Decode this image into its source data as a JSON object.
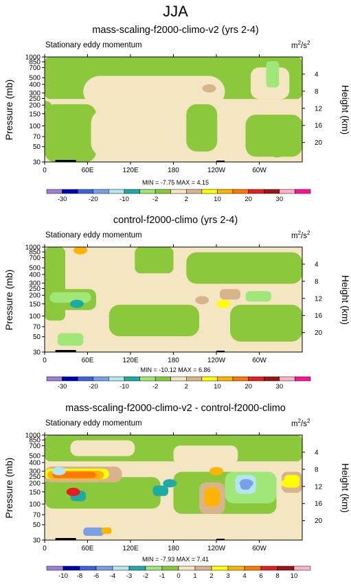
{
  "figure": {
    "season": "JJA"
  },
  "colors": {
    "abs_levels": [
      "#9e7fd6",
      "#0000b4",
      "#3c64dc",
      "#78a0e6",
      "#b4e6f0",
      "#1eaaa5",
      "#a0e678",
      "#8cc83c",
      "#f5e6c3",
      "#d7b48c",
      "#ffff00",
      "#ffb400",
      "#ff7800",
      "#e61e1e",
      "#a01414",
      "#ffb4c8",
      "#ff1493"
    ],
    "diff_levels": [
      "#9e7fd6",
      "#0000b4",
      "#3c64dc",
      "#78a0e6",
      "#b4e6f0",
      "#1eaaa5",
      "#a0e678",
      "#8cc83c",
      "#f5e6c3",
      "#d7b48c",
      "#ffff00",
      "#ffb400",
      "#ff7800",
      "#e61e1e",
      "#a01414",
      "#ffb4c8",
      "#ff1493"
    ]
  },
  "panels": [
    {
      "title": "mass-scaling-f2000-climo-v2 (yrs 2-4)",
      "left_label": "Stationary eddy momentum",
      "units_base": "m",
      "units_sup1": "2",
      "units_mid": "/s",
      "units_sup2": "2",
      "ylabel": "Pressure (mb)",
      "ylabel_right": "Height (km)",
      "minmax": "MIN = -7.75  MAX =  4.15"
    },
    {
      "title": "control-f2000-climo (yrs 2-4)",
      "left_label": "Stationary eddy momentum",
      "units_base": "m",
      "units_sup1": "2",
      "units_mid": "/s",
      "units_sup2": "2",
      "ylabel": "Pressure (mb)",
      "ylabel_right": "Height (km)",
      "minmax": "MIN = -10.12  MAX =  6.86"
    },
    {
      "title": "mass-scaling-f2000-climo-v2 - control-f2000-climo",
      "left_label": "Stationary eddy momentum",
      "units_base": "m",
      "units_sup1": "2",
      "units_mid": "/s",
      "units_sup2": "2",
      "ylabel": "Pressure (mb)",
      "ylabel_right": "Height (km)",
      "minmax": "MIN = -7.93  MAX =  7.41"
    }
  ],
  "chart_data": [
    {
      "type": "heatmap",
      "title": "mass-scaling-f2000-climo-v2 (yrs 2-4)",
      "subtitle": "Stationary eddy momentum",
      "units": "m2/s2",
      "xlabel": "",
      "ylabel": "Pressure (mb)",
      "ylabel_right": "Height (km)",
      "x_ticks": [
        "0",
        "60E",
        "120E",
        "180",
        "120W",
        "60W"
      ],
      "x_tick_values": [
        0,
        60,
        120,
        180,
        240,
        300
      ],
      "xlim": [
        0,
        360
      ],
      "y_ticks": [
        1000,
        850,
        700,
        500,
        400,
        300,
        250,
        200,
        150,
        100,
        70,
        50,
        30
      ],
      "ylim": [
        1000,
        30
      ],
      "y_scale": "log",
      "y_ticks_right": [
        4,
        8,
        12,
        16,
        20
      ],
      "contour_levels": [
        -30,
        -20,
        -10,
        -2,
        2,
        10,
        20,
        30
      ],
      "colorbar_labels": [
        "-30",
        "-20",
        "-10",
        "-2",
        "2",
        "10",
        "20",
        "30"
      ],
      "min": -7.75,
      "max": 4.15,
      "features": [
        {
          "lon": 0,
          "lat_p": 200,
          "class": 7
        },
        {
          "lon": 40,
          "lat_p": 500,
          "class": 7
        },
        {
          "lon": 230,
          "lat_p": 350,
          "class": 9
        },
        {
          "lon": 325,
          "lat_p": 40,
          "class": 7
        }
      ]
    },
    {
      "type": "heatmap",
      "title": "control-f2000-climo (yrs 2-4)",
      "subtitle": "Stationary eddy momentum",
      "units": "m2/s2",
      "xlabel": "",
      "ylabel": "Pressure (mb)",
      "ylabel_right": "Height (km)",
      "x_ticks": [
        "0",
        "60E",
        "120E",
        "180",
        "120W",
        "60W"
      ],
      "x_tick_values": [
        0,
        60,
        120,
        180,
        240,
        300
      ],
      "xlim": [
        0,
        360
      ],
      "y_ticks": [
        1000,
        850,
        700,
        500,
        400,
        300,
        250,
        200,
        150,
        100,
        70,
        50,
        30
      ],
      "ylim": [
        1000,
        30
      ],
      "y_scale": "log",
      "y_ticks_right": [
        4,
        8,
        12,
        16,
        20
      ],
      "contour_levels": [
        -30,
        -20,
        -10,
        -2,
        2,
        10,
        20,
        30
      ],
      "colorbar_labels": [
        "-30",
        "-20",
        "-10",
        "-2",
        "2",
        "10",
        "20",
        "30"
      ],
      "min": -10.12,
      "max": 6.86,
      "features": [
        {
          "lon": 45,
          "lat_p": 150,
          "class": 5
        },
        {
          "lon": 220,
          "lat_p": 170,
          "class": 9
        },
        {
          "lon": 250,
          "lat_p": 150,
          "class": 10
        },
        {
          "lon": 50,
          "lat_p": 900,
          "class": 11
        }
      ]
    },
    {
      "type": "heatmap",
      "title": "mass-scaling-f2000-climo-v2 - control-f2000-climo",
      "subtitle": "Stationary eddy momentum",
      "units": "m2/s2",
      "xlabel": "",
      "ylabel": "Pressure (mb)",
      "ylabel_right": "Height (km)",
      "x_ticks": [
        "0",
        "60E",
        "120E",
        "180",
        "120W",
        "60W"
      ],
      "x_tick_values": [
        0,
        60,
        120,
        180,
        240,
        300
      ],
      "xlim": [
        0,
        360
      ],
      "y_ticks": [
        1000,
        850,
        700,
        500,
        400,
        300,
        250,
        200,
        150,
        100,
        70,
        50,
        30
      ],
      "ylim": [
        1000,
        30
      ],
      "y_scale": "log",
      "y_ticks_right": [
        4,
        8,
        12,
        16,
        20
      ],
      "contour_levels": [
        -10,
        -8,
        -6,
        -4,
        -3,
        -2,
        -1,
        0,
        1,
        2,
        3,
        4,
        6,
        8,
        10
      ],
      "colorbar_labels": [
        "-10",
        "-8",
        "-6",
        "-4",
        "-3",
        "-2",
        "-1",
        "0",
        "1",
        "2",
        "3",
        "4",
        "6",
        "8",
        "10"
      ],
      "min": -7.93,
      "max": 7.41,
      "features": [
        {
          "lon": 40,
          "lat_p": 150,
          "class": 13
        },
        {
          "lon": 20,
          "lat_p": 300,
          "class": 4
        },
        {
          "lon": 175,
          "lat_p": 200,
          "class": 5
        },
        {
          "lon": 240,
          "lat_p": 300,
          "class": 11
        },
        {
          "lon": 282,
          "lat_p": 200,
          "class": 3
        },
        {
          "lon": 340,
          "lat_p": 200,
          "class": 10
        }
      ]
    }
  ]
}
